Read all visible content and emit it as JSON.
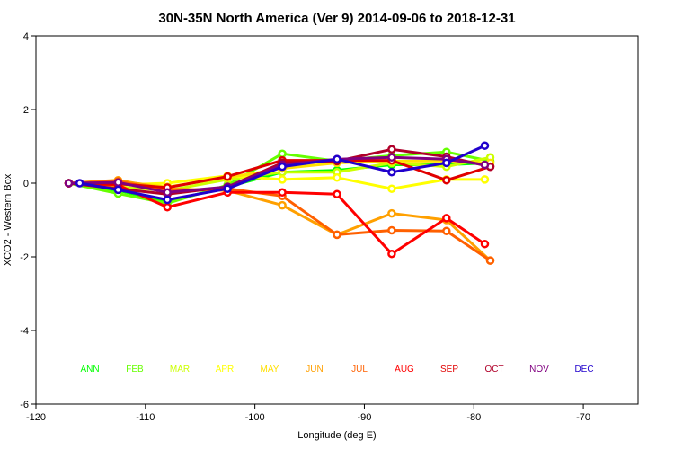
{
  "chart_data": {
    "type": "line",
    "title": "30N-35N North America (Ver 9)   2014-09-06 to 2018-12-31",
    "xlabel": "Longitude (deg E)",
    "ylabel": "XCO2 - Western Box",
    "xlim": [
      -120,
      -65
    ],
    "ylim": [
      -6,
      4
    ],
    "xticks": [
      -120,
      -110,
      -100,
      -90,
      -80,
      -70
    ],
    "yticks": [
      -6,
      -4,
      -2,
      0,
      2,
      4
    ],
    "xtick_labels": [
      "-120",
      "-110",
      "-100",
      "-90",
      "-80",
      "-70"
    ],
    "ytick_labels": [
      "-6",
      "-4",
      "-2",
      "0",
      "2",
      "4"
    ],
    "grid": false,
    "legend_placement": "bottom, single row inside plot",
    "series": [
      {
        "name": "ANN",
        "color": "#00ff00",
        "x": [
          -117,
          -112.5,
          -108,
          -102.5,
          -97.5,
          -92.5,
          -87.5,
          -82.5,
          -78.5
        ],
        "y": [
          0.0,
          -0.2,
          -0.5,
          -0.1,
          0.3,
          0.35,
          0.5,
          0.5,
          0.55
        ]
      },
      {
        "name": "FEB",
        "color": "#66ff00",
        "x": [
          -117,
          -112.5,
          -108,
          -102.5,
          -97.5,
          -92.5,
          -87.5,
          -82.5,
          -78.5
        ],
        "y": [
          0.0,
          -0.28,
          -0.55,
          -0.05,
          0.8,
          0.6,
          0.75,
          0.85,
          0.6
        ]
      },
      {
        "name": "MAR",
        "color": "#ccff00",
        "x": [
          -117,
          -112.5,
          -108,
          -102.5,
          -97.5,
          -92.5,
          -87.5,
          -82.5,
          -78.5
        ],
        "y": [
          0.0,
          -0.1,
          -0.2,
          0.1,
          0.3,
          0.3,
          0.55,
          0.45,
          0.7
        ]
      },
      {
        "name": "APR",
        "color": "#ffff00",
        "x": [
          -117,
          -112.5,
          -108,
          -102.5,
          -97.5,
          -92.5,
          -87.5,
          -82.5,
          -79
        ],
        "y": [
          0.0,
          -0.05,
          0.0,
          0.2,
          0.1,
          0.15,
          -0.15,
          0.1,
          0.1
        ]
      },
      {
        "name": "MAY",
        "color": "#ffe000",
        "x": [
          -117,
          -112.5,
          -108,
          -102.5,
          -97.5,
          -92.5,
          -87.5,
          -82.5,
          -78.5
        ],
        "y": [
          0.0,
          0.05,
          -0.1,
          0.15,
          0.4,
          0.55,
          0.6,
          0.6,
          0.55
        ]
      },
      {
        "name": "JUN",
        "color": "#ffa000",
        "x": [
          -117,
          -112.5,
          -108,
          -102.5,
          -97.5,
          -92.5,
          -87.5,
          -82.5,
          -78.5
        ],
        "y": [
          0.0,
          0.08,
          -0.15,
          -0.2,
          -0.6,
          -1.4,
          -0.82,
          -1.0,
          -2.1
        ]
      },
      {
        "name": "JUL",
        "color": "#ff6000",
        "x": [
          -117,
          -112.5,
          -108,
          -102.5,
          -97.5,
          -92.5,
          -87.5,
          -82.5,
          -78.5
        ],
        "y": [
          0.0,
          0.05,
          -0.2,
          -0.15,
          -0.35,
          -1.4,
          -1.28,
          -1.3,
          -2.1
        ]
      },
      {
        "name": "AUG",
        "color": "#ff0000",
        "x": [
          -117,
          -112.5,
          -108,
          -102.5,
          -97.5,
          -92.5,
          -87.5,
          -82.5,
          -79
        ],
        "y": [
          0.0,
          -0.05,
          -0.65,
          -0.25,
          -0.25,
          -0.3,
          -1.92,
          -0.95,
          -1.65
        ]
      },
      {
        "name": "SEP",
        "color": "#e00000",
        "x": [
          -117,
          -112.5,
          -108,
          -102.5,
          -97.5,
          -92.5,
          -87.5,
          -82.5,
          -78.5
        ],
        "y": [
          0.0,
          -0.02,
          -0.12,
          0.18,
          0.62,
          0.62,
          0.62,
          0.08,
          0.45
        ]
      },
      {
        "name": "OCT",
        "color": "#b0002a",
        "x": [
          -117,
          -112.5,
          -108,
          -102.5,
          -97.5,
          -92.5,
          -87.5,
          -82.5,
          -78.5
        ],
        "y": [
          0.0,
          -0.15,
          -0.3,
          -0.1,
          0.55,
          0.6,
          0.92,
          0.72,
          0.45
        ]
      },
      {
        "name": "NOV",
        "color": "#800080",
        "x": [
          -117,
          -112.5,
          -108,
          -102.5,
          -97.5,
          -92.5,
          -87.5,
          -82.5,
          -79
        ],
        "y": [
          0.0,
          0.02,
          -0.25,
          -0.1,
          0.5,
          0.65,
          0.7,
          0.65,
          0.5
        ]
      },
      {
        "name": "DEC",
        "color": "#2000cc",
        "x": [
          -116,
          -112.5,
          -108,
          -102.5,
          -97.5,
          -92.5,
          -87.5,
          -82.5,
          -79
        ],
        "y": [
          0.0,
          -0.18,
          -0.45,
          -0.15,
          0.45,
          0.65,
          0.3,
          0.55,
          1.02
        ]
      }
    ]
  }
}
